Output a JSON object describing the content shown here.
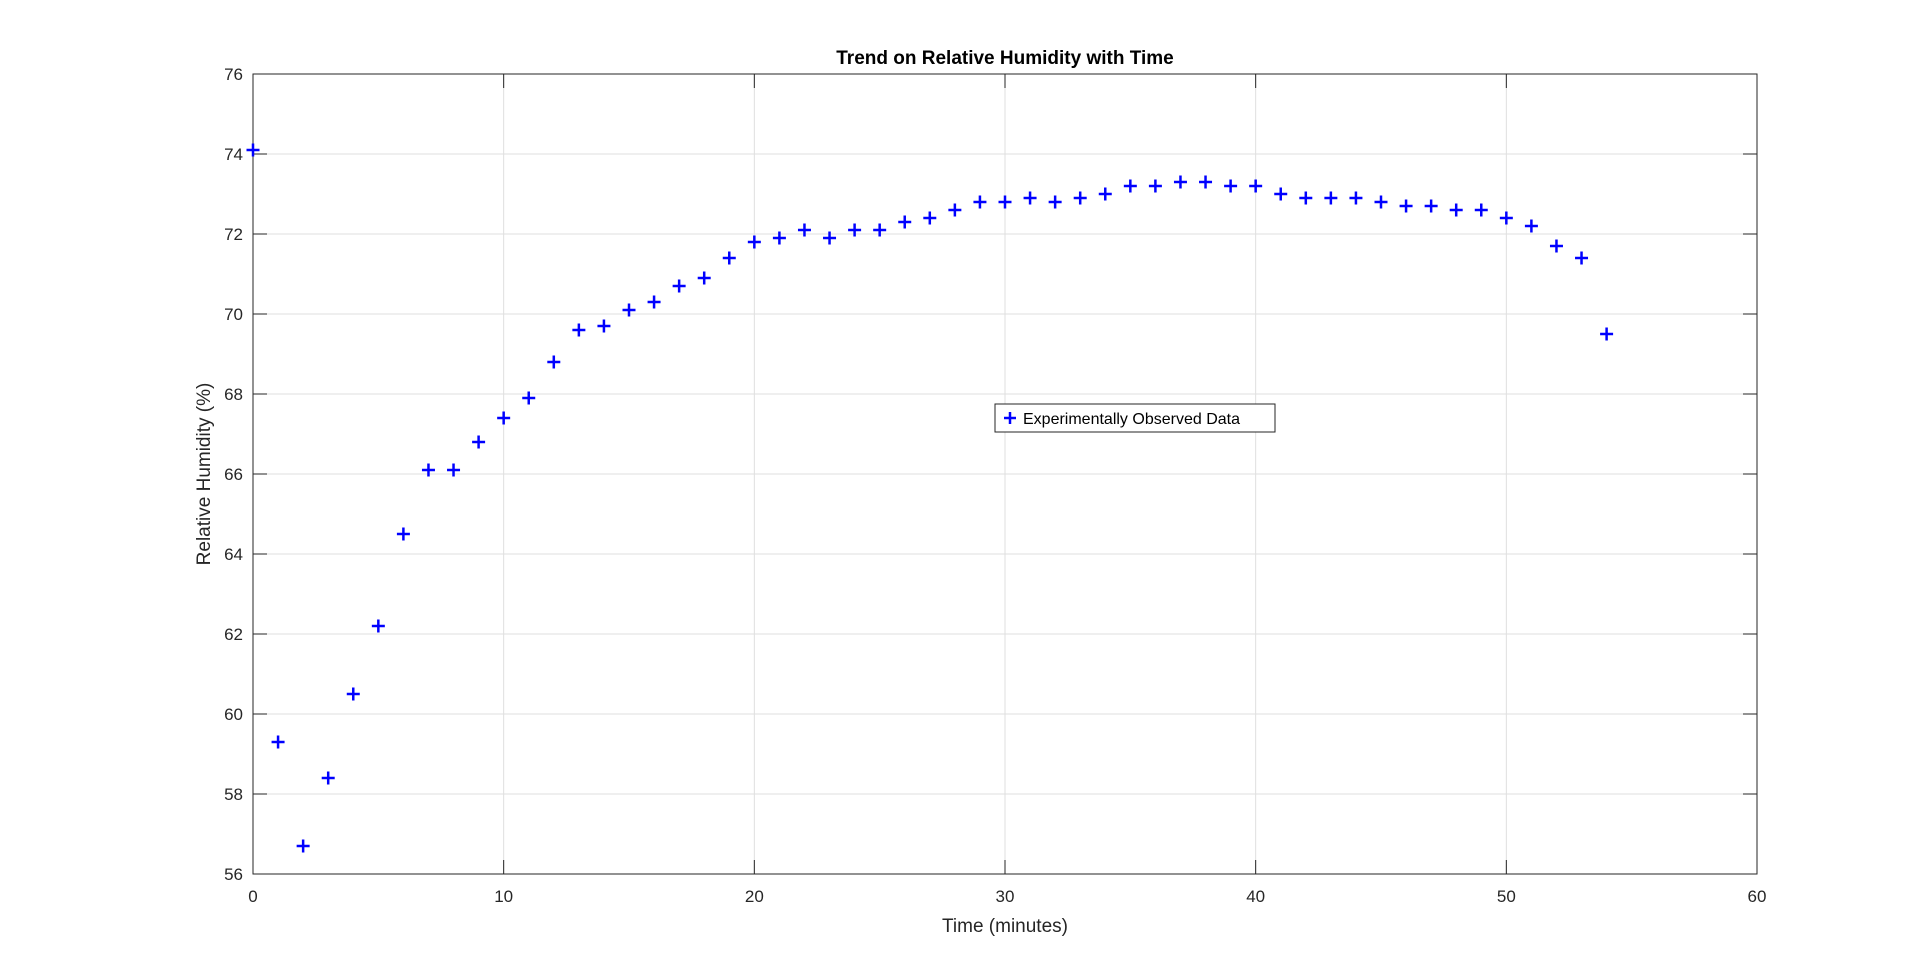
{
  "chart_data": {
    "type": "scatter",
    "title": "Trend on Relative Humidity with Time",
    "xlabel": "Time (minutes)",
    "ylabel": "Relative Humidity (%)",
    "xlim": [
      0,
      60
    ],
    "ylim": [
      56,
      76
    ],
    "xticks": [
      0,
      10,
      20,
      30,
      40,
      50,
      60
    ],
    "yticks": [
      56,
      58,
      60,
      62,
      64,
      66,
      68,
      70,
      72,
      74,
      76
    ],
    "grid": true,
    "legend": {
      "placement": "center",
      "entries": [
        "Experimentally Observed Data"
      ]
    },
    "marker": "+",
    "colors": {
      "series": "#0000ff",
      "grid": "#dfdfdf",
      "axis": "#262626"
    },
    "series": [
      {
        "name": "Experimentally Observed Data",
        "x": [
          0,
          1,
          2,
          3,
          4,
          5,
          6,
          7,
          8,
          9,
          10,
          11,
          12,
          13,
          14,
          15,
          16,
          17,
          18,
          19,
          20,
          21,
          22,
          23,
          24,
          25,
          26,
          27,
          28,
          29,
          30,
          31,
          32,
          33,
          34,
          35,
          36,
          37,
          38,
          39,
          40,
          41,
          42,
          43,
          44,
          45,
          46,
          47,
          48,
          49,
          50,
          51,
          52,
          53,
          54
        ],
        "y": [
          74.1,
          59.3,
          56.7,
          58.4,
          60.5,
          62.2,
          64.5,
          66.1,
          66.1,
          66.8,
          67.4,
          67.9,
          68.8,
          69.6,
          69.7,
          70.1,
          70.3,
          70.7,
          70.9,
          71.4,
          71.8,
          71.9,
          72.1,
          71.9,
          72.1,
          72.1,
          72.3,
          72.4,
          72.6,
          72.8,
          72.8,
          72.9,
          72.8,
          72.9,
          73.0,
          73.2,
          73.2,
          73.3,
          73.3,
          73.2,
          73.2,
          73.0,
          72.9,
          72.9,
          72.9,
          72.8,
          72.7,
          72.7,
          72.6,
          72.6,
          72.4,
          72.2,
          71.7,
          71.4,
          69.5
        ]
      }
    ]
  }
}
